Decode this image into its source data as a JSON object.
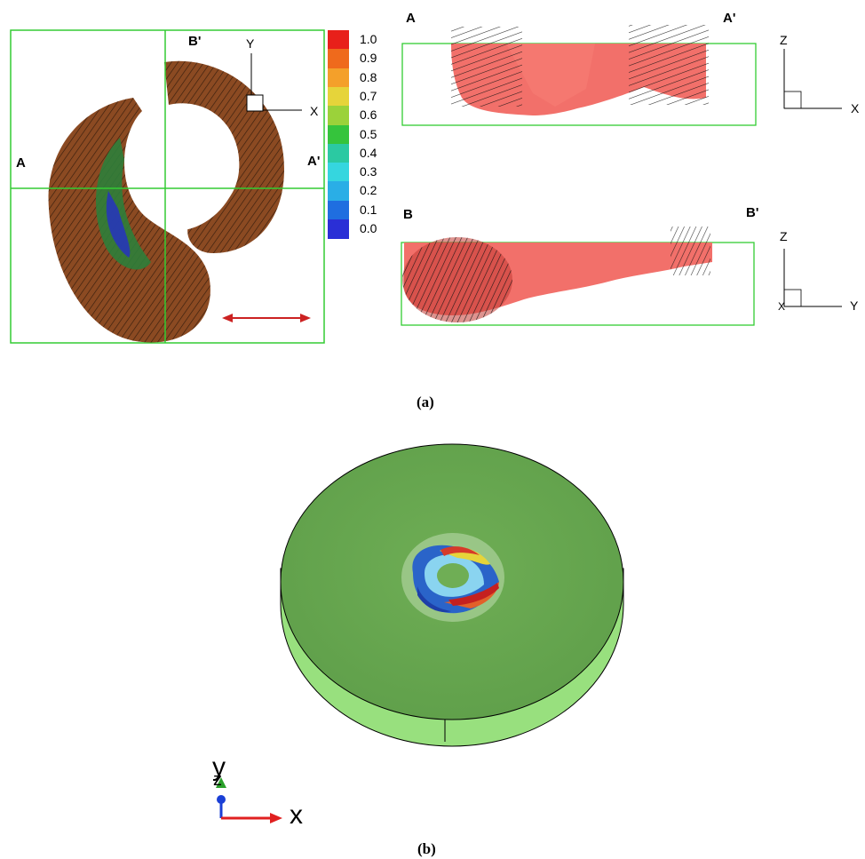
{
  "panel_a": {
    "caption": "(a)",
    "top_view": {
      "section_labels": {
        "a_left": "A",
        "a_right": "A'",
        "b_top": "B'"
      },
      "axis_labels": {
        "y": "Y",
        "x": "X"
      }
    },
    "colorbar": {
      "ticks": [
        "1.0",
        "0.9",
        "0.8",
        "0.7",
        "0.6",
        "0.5",
        "0.4",
        "0.3",
        "0.2",
        "0.1",
        "0.0"
      ],
      "colors": [
        "#e8201a",
        "#ef6a1c",
        "#f4a02a",
        "#e6d43a",
        "#9bd23a",
        "#35c43c",
        "#2bc9a2",
        "#35d6df",
        "#2aaee6",
        "#1f6ee0",
        "#2a2fd6"
      ]
    },
    "section_aa": {
      "label_left": "A",
      "label_right": "A'",
      "axis_labels": {
        "vertical": "Z",
        "horizontal": "X"
      }
    },
    "section_bb": {
      "label_left": "B",
      "label_right": "B'",
      "axis_labels": {
        "vertical": "Z",
        "horizontal": "Y",
        "out_of_plane": "X"
      }
    }
  },
  "panel_b": {
    "caption": "(b)",
    "triad": {
      "y": "y",
      "z": "z",
      "x": "x"
    }
  }
}
